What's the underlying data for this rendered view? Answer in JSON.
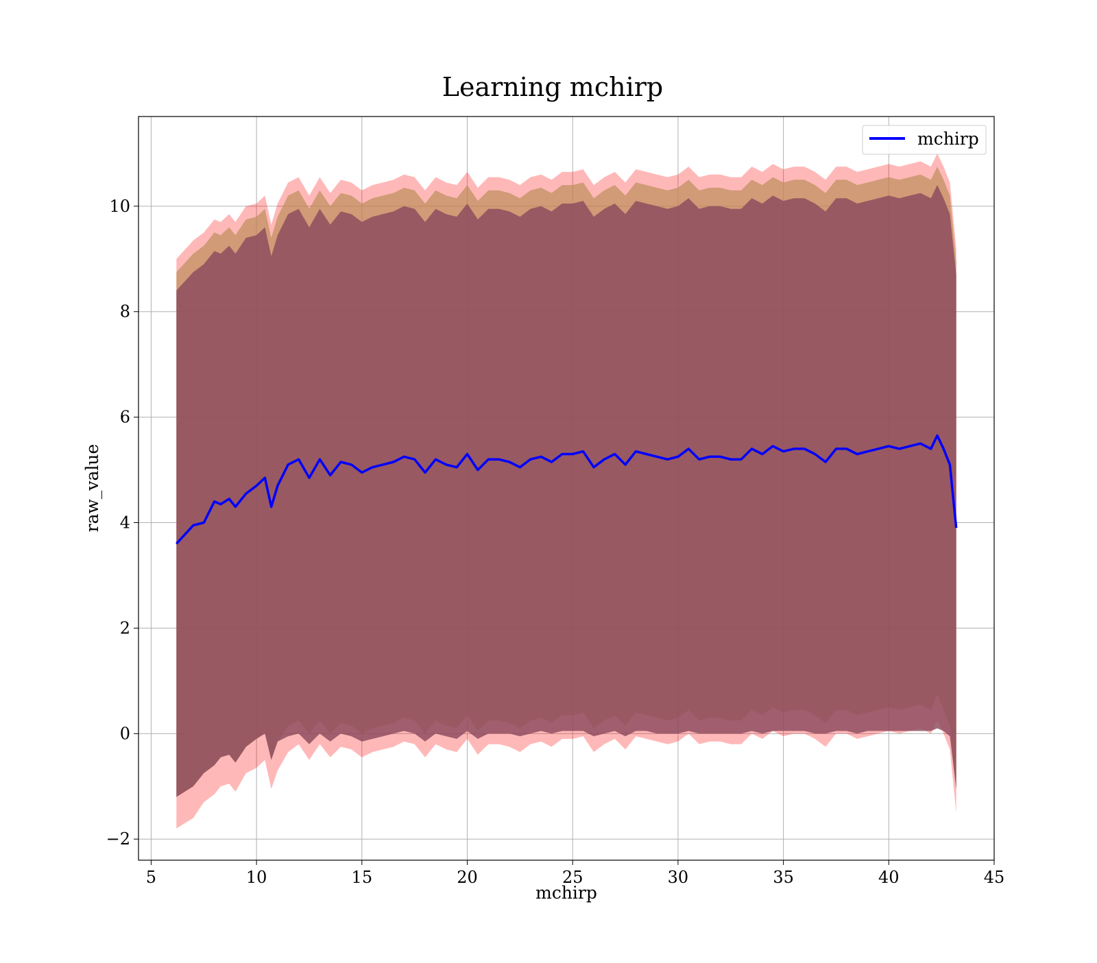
{
  "chart_data": {
    "type": "line",
    "title": "Learning mchirp",
    "xlabel": "mchirp",
    "ylabel": "raw_value",
    "xlim": [
      4.4,
      45
    ],
    "ylim": [
      -2.4,
      11.7
    ],
    "xticks": [
      5,
      10,
      15,
      20,
      25,
      30,
      35,
      40,
      45
    ],
    "xtick_labels": [
      "5",
      "10",
      "15",
      "20",
      "25",
      "30",
      "35",
      "40",
      "45"
    ],
    "yticks": [
      -2,
      0,
      2,
      4,
      6,
      8,
      10
    ],
    "ytick_labels": [
      "−2",
      "0",
      "2",
      "4",
      "6",
      "8",
      "10"
    ],
    "grid": true,
    "legend": {
      "position": "top-right",
      "entries": [
        "mchirp"
      ]
    },
    "series": [
      {
        "name": "mchirp",
        "color": "#0000ff",
        "x": [
          6.2,
          7.0,
          7.5,
          8.0,
          8.3,
          8.7,
          9.0,
          9.5,
          10.0,
          10.4,
          10.7,
          11.0,
          11.5,
          12.0,
          12.5,
          13.0,
          13.5,
          14.0,
          14.5,
          15.0,
          15.5,
          16.0,
          16.5,
          17.0,
          17.5,
          18.0,
          18.5,
          19.0,
          19.5,
          20.0,
          20.5,
          21.0,
          21.5,
          22.0,
          22.5,
          23.0,
          23.5,
          24.0,
          24.5,
          25.0,
          25.5,
          26.0,
          26.5,
          27.0,
          27.5,
          28.0,
          28.5,
          29.0,
          29.5,
          30.0,
          30.5,
          31.0,
          31.5,
          32.0,
          32.5,
          33.0,
          33.5,
          34.0,
          34.5,
          35.0,
          35.5,
          36.0,
          36.5,
          37.0,
          37.5,
          38.0,
          38.5,
          39.0,
          39.5,
          40.0,
          40.5,
          41.0,
          41.5,
          42.0,
          42.3,
          42.6,
          42.9,
          43.2
        ],
        "values": [
          3.6,
          3.95,
          4.0,
          4.4,
          4.35,
          4.45,
          4.3,
          4.55,
          4.7,
          4.85,
          4.3,
          4.7,
          5.1,
          5.2,
          4.85,
          5.2,
          4.9,
          5.15,
          5.1,
          4.95,
          5.05,
          5.1,
          5.15,
          5.25,
          5.2,
          4.95,
          5.2,
          5.1,
          5.05,
          5.3,
          5.0,
          5.2,
          5.2,
          5.15,
          5.05,
          5.2,
          5.25,
          5.15,
          5.3,
          5.3,
          5.35,
          5.05,
          5.2,
          5.3,
          5.1,
          5.35,
          5.3,
          5.25,
          5.2,
          5.25,
          5.4,
          5.2,
          5.25,
          5.25,
          5.2,
          5.2,
          5.4,
          5.3,
          5.45,
          5.35,
          5.4,
          5.4,
          5.3,
          5.15,
          5.4,
          5.4,
          5.3,
          5.35,
          5.4,
          5.45,
          5.4,
          5.45,
          5.5,
          5.4,
          5.65,
          5.4,
          5.1,
          3.9
        ]
      }
    ],
    "bands": [
      {
        "color": "#ff0000",
        "opacity": 0.28,
        "lower": [
          -1.8,
          -1.6,
          -1.3,
          -1.15,
          -1.0,
          -0.95,
          -1.1,
          -0.75,
          -0.65,
          -0.5,
          -1.05,
          -0.7,
          -0.35,
          -0.2,
          -0.5,
          -0.2,
          -0.45,
          -0.25,
          -0.3,
          -0.45,
          -0.35,
          -0.3,
          -0.25,
          -0.15,
          -0.2,
          -0.45,
          -0.2,
          -0.3,
          -0.35,
          -0.1,
          -0.4,
          -0.2,
          -0.2,
          -0.25,
          -0.35,
          -0.2,
          -0.15,
          -0.25,
          -0.1,
          -0.1,
          -0.05,
          -0.35,
          -0.2,
          -0.1,
          -0.3,
          -0.05,
          -0.1,
          -0.15,
          -0.2,
          -0.15,
          0.0,
          -0.2,
          -0.15,
          -0.15,
          -0.2,
          -0.2,
          0.0,
          -0.1,
          0.05,
          -0.05,
          0.0,
          0.0,
          -0.1,
          -0.25,
          0.0,
          0.0,
          -0.1,
          -0.05,
          0.0,
          0.05,
          0.0,
          0.05,
          0.1,
          0.0,
          0.25,
          0.0,
          -0.3,
          -1.5
        ],
        "upper": [
          9.0,
          9.35,
          9.5,
          9.75,
          9.7,
          9.85,
          9.7,
          10.0,
          10.05,
          10.2,
          9.65,
          10.05,
          10.45,
          10.55,
          10.2,
          10.55,
          10.25,
          10.5,
          10.45,
          10.3,
          10.4,
          10.45,
          10.5,
          10.6,
          10.55,
          10.3,
          10.55,
          10.45,
          10.4,
          10.65,
          10.35,
          10.55,
          10.55,
          10.5,
          10.4,
          10.55,
          10.6,
          10.5,
          10.65,
          10.65,
          10.7,
          10.4,
          10.55,
          10.65,
          10.45,
          10.7,
          10.65,
          10.6,
          10.55,
          10.6,
          10.75,
          10.55,
          10.6,
          10.6,
          10.55,
          10.55,
          10.75,
          10.65,
          10.8,
          10.7,
          10.75,
          10.75,
          10.65,
          10.5,
          10.75,
          10.75,
          10.65,
          10.7,
          10.75,
          10.8,
          10.75,
          10.8,
          10.85,
          10.75,
          11.0,
          10.75,
          10.45,
          9.2
        ]
      },
      {
        "color": "#bc8f5a",
        "opacity": 0.7,
        "lower": [
          -1.2,
          -1.0,
          -0.75,
          -0.6,
          -0.45,
          -0.4,
          -0.55,
          -0.25,
          -0.1,
          0.0,
          -0.5,
          -0.15,
          0.15,
          0.25,
          0.0,
          0.25,
          0.0,
          0.2,
          0.15,
          0.0,
          0.1,
          0.15,
          0.2,
          0.3,
          0.25,
          0.0,
          0.25,
          0.15,
          0.1,
          0.35,
          0.05,
          0.25,
          0.25,
          0.2,
          0.1,
          0.25,
          0.3,
          0.2,
          0.35,
          0.35,
          0.4,
          0.1,
          0.25,
          0.35,
          0.15,
          0.4,
          0.35,
          0.3,
          0.25,
          0.3,
          0.45,
          0.25,
          0.3,
          0.3,
          0.25,
          0.25,
          0.45,
          0.35,
          0.5,
          0.4,
          0.45,
          0.45,
          0.35,
          0.2,
          0.45,
          0.45,
          0.35,
          0.4,
          0.45,
          0.5,
          0.45,
          0.5,
          0.55,
          0.45,
          0.75,
          0.45,
          0.15,
          -1.05
        ],
        "upper": [
          8.75,
          9.1,
          9.25,
          9.5,
          9.45,
          9.6,
          9.45,
          9.75,
          9.8,
          9.95,
          9.4,
          9.8,
          10.2,
          10.3,
          9.95,
          10.3,
          10.0,
          10.25,
          10.2,
          10.05,
          10.15,
          10.2,
          10.25,
          10.35,
          10.3,
          10.05,
          10.3,
          10.2,
          10.15,
          10.4,
          10.1,
          10.3,
          10.3,
          10.25,
          10.15,
          10.3,
          10.35,
          10.25,
          10.4,
          10.4,
          10.45,
          10.15,
          10.3,
          10.4,
          10.2,
          10.45,
          10.4,
          10.35,
          10.3,
          10.35,
          10.5,
          10.3,
          10.35,
          10.35,
          10.3,
          10.3,
          10.5,
          10.4,
          10.55,
          10.45,
          10.5,
          10.5,
          10.4,
          10.25,
          10.5,
          10.5,
          10.4,
          10.45,
          10.5,
          10.55,
          10.5,
          10.55,
          10.6,
          10.5,
          10.75,
          10.5,
          10.2,
          8.95
        ]
      },
      {
        "color": "#8b4a5e",
        "opacity": 0.82,
        "lower": [
          -1.2,
          -1.0,
          -0.75,
          -0.6,
          -0.45,
          -0.4,
          -0.55,
          -0.25,
          -0.1,
          0.0,
          -0.5,
          -0.15,
          -0.05,
          0.0,
          -0.2,
          0.0,
          -0.15,
          0.0,
          -0.05,
          -0.15,
          -0.1,
          -0.05,
          0.0,
          0.05,
          0.0,
          -0.15,
          0.0,
          -0.05,
          -0.1,
          0.05,
          -0.1,
          0.0,
          0.0,
          0.0,
          -0.05,
          0.0,
          0.05,
          0.0,
          0.05,
          0.05,
          0.05,
          -0.05,
          0.0,
          0.05,
          -0.05,
          0.05,
          0.05,
          0.0,
          0.0,
          0.0,
          0.05,
          0.0,
          0.0,
          0.0,
          0.0,
          0.0,
          0.05,
          0.0,
          0.05,
          0.05,
          0.05,
          0.05,
          0.0,
          0.0,
          0.05,
          0.05,
          0.0,
          0.05,
          0.05,
          0.05,
          0.05,
          0.05,
          0.05,
          0.05,
          0.1,
          0.05,
          -0.05,
          -1.05
        ],
        "upper": [
          8.4,
          8.75,
          8.9,
          9.15,
          9.1,
          9.25,
          9.1,
          9.4,
          9.45,
          9.6,
          9.05,
          9.45,
          9.85,
          9.95,
          9.6,
          9.95,
          9.65,
          9.9,
          9.85,
          9.7,
          9.8,
          9.85,
          9.9,
          10.0,
          9.95,
          9.7,
          9.95,
          9.85,
          9.8,
          10.05,
          9.75,
          9.95,
          9.95,
          9.9,
          9.8,
          9.95,
          10.0,
          9.9,
          10.05,
          10.05,
          10.1,
          9.8,
          9.95,
          10.05,
          9.85,
          10.1,
          10.05,
          10.0,
          9.95,
          10.0,
          10.15,
          9.95,
          10.0,
          10.0,
          9.95,
          9.95,
          10.15,
          10.05,
          10.2,
          10.1,
          10.15,
          10.15,
          10.05,
          9.9,
          10.15,
          10.15,
          10.05,
          10.1,
          10.15,
          10.2,
          10.15,
          10.2,
          10.25,
          10.15,
          10.4,
          10.15,
          9.85,
          8.7
        ]
      }
    ]
  }
}
